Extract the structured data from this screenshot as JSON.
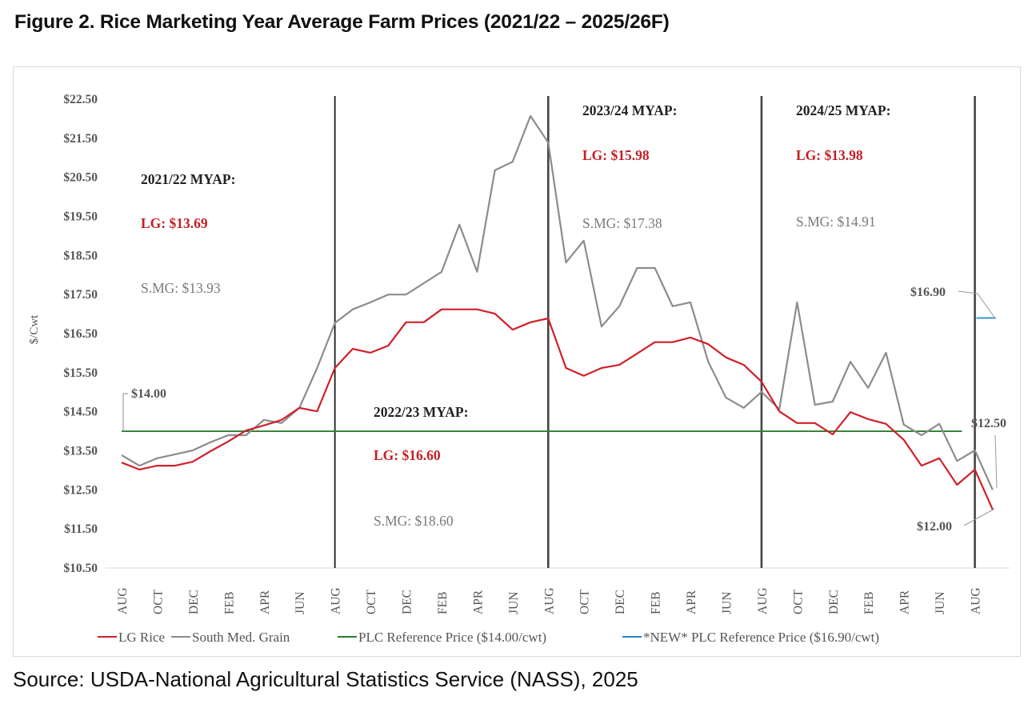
{
  "figure": {
    "title": "Figure 2. Rice Marketing Year Average Farm Prices (2021/22 – 2025/26F)",
    "source": "Source: USDA-National Agricultural Statistics Service (NASS), 2025"
  },
  "chart_data": {
    "type": "line",
    "title": "Figure 2. Rice Marketing Year Average Farm Prices (2021/22 – 2025/26F)",
    "xlabel": "",
    "ylabel": "$/Cwt",
    "ylim": [
      10.5,
      22.5
    ],
    "y_ticks": [
      "$22.50",
      "$21.50",
      "$20.50",
      "$19.50",
      "$18.50",
      "$17.50",
      "$16.50",
      "$15.50",
      "$14.50",
      "$13.50",
      "$12.50",
      "$11.50",
      "$10.50"
    ],
    "y_tick_values": [
      22.5,
      21.5,
      20.5,
      19.5,
      18.5,
      17.5,
      16.5,
      15.5,
      14.5,
      13.5,
      12.5,
      11.5,
      10.5
    ],
    "x": [
      "AUG 2021",
      "SEP 2021",
      "OCT 2021",
      "NOV 2021",
      "DEC 2021",
      "JAN 2022",
      "FEB 2022",
      "MAR 2022",
      "APR 2022",
      "MAY 2022",
      "JUN 2022",
      "JUL 2022",
      "AUG 2022",
      "SEP 2022",
      "OCT 2022",
      "NOV 2022",
      "DEC 2022",
      "JAN 2023",
      "FEB 2023",
      "MAR 2023",
      "APR 2023",
      "MAY 2023",
      "JUN 2023",
      "JUL 2023",
      "AUG 2023",
      "SEP 2023",
      "OCT 2023",
      "NOV 2023",
      "DEC 2023",
      "JAN 2024",
      "FEB 2024",
      "MAR 2024",
      "APR 2024",
      "MAY 2024",
      "JUN 2024",
      "JUL 2024",
      "AUG 2024",
      "SEP 2024",
      "OCT 2024",
      "NOV 2024",
      "DEC 2024",
      "JAN 2025",
      "FEB 2025",
      "MAR 2025",
      "APR 2025",
      "MAY 2025",
      "JUN 2025",
      "JUL 2025",
      "AUG 2025",
      "SEP 2025"
    ],
    "x_tick_labels": [
      "AUG",
      "OCT",
      "DEC",
      "FEB",
      "APR",
      "JUN",
      "AUG",
      "OCT",
      "DEC",
      "FEB",
      "APR",
      "JUN",
      "AUG",
      "OCT",
      "DEC",
      "FEB",
      "APR",
      "JUN",
      "AUG",
      "OCT",
      "DEC",
      "FEB",
      "APR",
      "JUN",
      "AUG"
    ],
    "x_tick_every": 2,
    "series": [
      {
        "name": "LG Rice",
        "color": "#d0202a",
        "values": [
          13.2,
          13.02,
          13.12,
          13.12,
          13.22,
          13.49,
          13.74,
          14.02,
          14.15,
          14.29,
          14.6,
          14.51,
          15.62,
          16.11,
          16.01,
          16.19,
          16.79,
          16.79,
          17.12,
          17.12,
          17.12,
          17.01,
          16.6,
          16.79,
          16.89,
          15.62,
          15.42,
          15.62,
          15.7,
          15.99,
          16.28,
          16.28,
          16.4,
          16.23,
          15.89,
          15.7,
          15.27,
          14.51,
          14.21,
          14.21,
          13.92,
          14.49,
          14.31,
          14.19,
          13.78,
          13.12,
          13.31,
          12.63,
          13.02,
          12.0
        ]
      },
      {
        "name": "South Med. Grain",
        "color": "#8c8c8c",
        "values": [
          13.39,
          13.12,
          13.31,
          13.41,
          13.51,
          13.72,
          13.9,
          13.9,
          14.29,
          14.21,
          14.6,
          15.62,
          16.77,
          17.12,
          17.3,
          17.5,
          17.5,
          17.79,
          18.08,
          19.29,
          18.08,
          20.68,
          20.9,
          22.07,
          21.39,
          18.32,
          18.88,
          16.68,
          17.2,
          18.18,
          18.18,
          17.2,
          17.3,
          15.78,
          14.86,
          14.6,
          15.01,
          14.56,
          17.3,
          14.68,
          14.76,
          15.78,
          15.11,
          16.01,
          14.17,
          13.9,
          14.19,
          13.24,
          13.51,
          12.5
        ]
      },
      {
        "name": "PLC Reference Price ($14.00/cwt)",
        "color": "#2e7d32",
        "value": 14.0,
        "x_range": [
          "AUG 2021",
          "JUL 2025"
        ]
      },
      {
        "name": "*NEW* PLC Reference Price ($16.90/cwt)",
        "color": "#1e88c8",
        "value": 16.9,
        "x_range": [
          "AUG 2025",
          "SEP 2025"
        ]
      }
    ],
    "marketing_year_dividers": [
      "AUG 2022",
      "AUG 2023",
      "AUG 2024",
      "AUG 2025"
    ],
    "annotations": [
      {
        "id": "my2122",
        "heading": "2021/22 MYAP:",
        "lg": "LG: $13.69",
        "smg": "S.MG: $13.93"
      },
      {
        "id": "my2223",
        "heading": "2022/23 MYAP:",
        "lg": "LG: $16.60",
        "smg": "S.MG: $18.60"
      },
      {
        "id": "my2324",
        "heading": "2023/24 MYAP:",
        "lg": "LG: $15.98",
        "smg": "S.MG: $17.38"
      },
      {
        "id": "my2425",
        "heading": "2024/25 MYAP:",
        "lg": "LG: $13.98",
        "smg": "S.MG: $14.91"
      }
    ],
    "callouts": {
      "plc_old": "$14.00",
      "plc_new": "$16.90",
      "smg_end": "$12.50",
      "lg_end": "$12.00"
    },
    "legend": {
      "placement": "bottom",
      "items": [
        "LG Rice",
        "South Med. Grain",
        "PLC Reference Price ($14.00/cwt)",
        "*NEW* PLC Reference Price ($16.90/cwt)"
      ]
    },
    "grid": false
  }
}
